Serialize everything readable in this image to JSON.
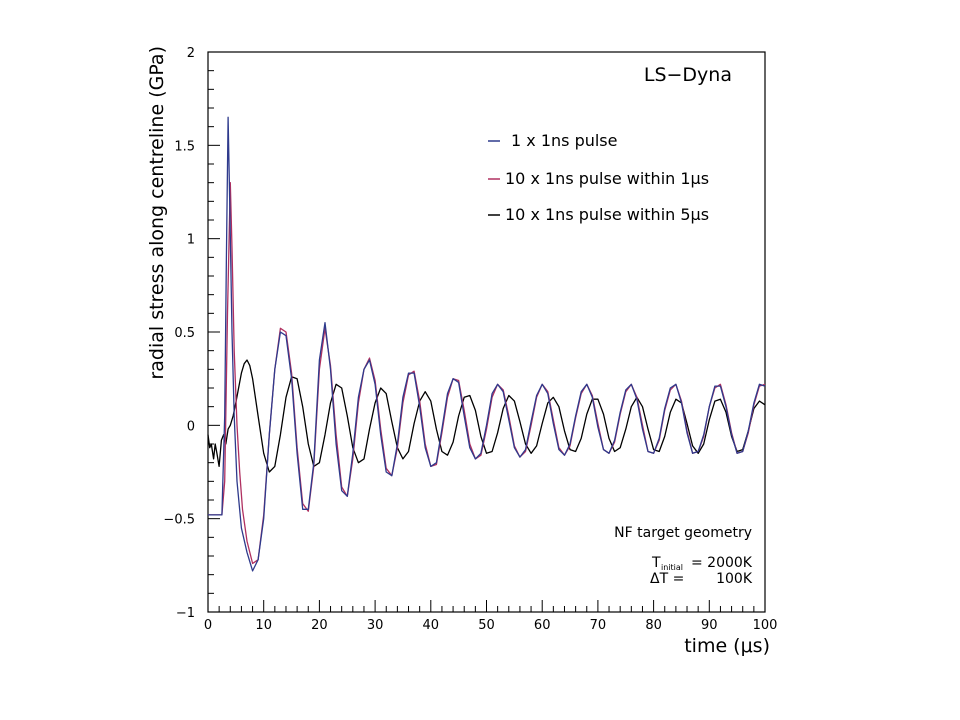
{
  "chart_data": {
    "type": "line",
    "title": "LS−Dyna",
    "xlabel": "time (μs)",
    "ylabel": "radial stress along centreline (GPa)",
    "xlim": [
      0,
      100
    ],
    "ylim": [
      -1,
      2
    ],
    "x_ticks": [
      "0",
      "10",
      "20",
      "30",
      "40",
      "50",
      "60",
      "70",
      "80",
      "90",
      "100"
    ],
    "y_ticks": [
      "−1",
      "−0.5",
      "0",
      "0.5",
      "1",
      "1.5",
      "2"
    ],
    "legend_position": "upper-right",
    "grid": false,
    "series": [
      {
        "name": "1 x 1ns pulse",
        "color": "#2e3a8c",
        "x": [
          0,
          0.5,
          1,
          1.5,
          2,
          2.5,
          3,
          3.3,
          3.6,
          3.9,
          4.3,
          4.7,
          5.2,
          6,
          7,
          8,
          9,
          10,
          11,
          12,
          13,
          14,
          15,
          16,
          17,
          18,
          19,
          20,
          21,
          22,
          23,
          24,
          25,
          26,
          27,
          28,
          29,
          30,
          31,
          32,
          33,
          34,
          35,
          36,
          37,
          38,
          39,
          40,
          41,
          42,
          43,
          44,
          45,
          46,
          47,
          48,
          49,
          50,
          51,
          52,
          53,
          54,
          55,
          56,
          57,
          58,
          59,
          60,
          61,
          62,
          63,
          64,
          65,
          66,
          67,
          68,
          69,
          70,
          71,
          72,
          73,
          74,
          75,
          76,
          77,
          78,
          79,
          80,
          81,
          82,
          83,
          84,
          85,
          86,
          87,
          88,
          89,
          90,
          91,
          92,
          93,
          94,
          95,
          96,
          97,
          98,
          99,
          100
        ],
        "y": [
          -0.48,
          -0.48,
          -0.48,
          -0.48,
          -0.48,
          -0.48,
          0.05,
          0.9,
          1.65,
          1.2,
          0.5,
          0.05,
          -0.3,
          -0.55,
          -0.68,
          -0.78,
          -0.72,
          -0.5,
          -0.05,
          0.3,
          0.5,
          0.48,
          0.25,
          -0.15,
          -0.45,
          -0.45,
          -0.2,
          0.35,
          0.55,
          0.3,
          -0.1,
          -0.35,
          -0.38,
          -0.15,
          0.15,
          0.3,
          0.35,
          0.22,
          -0.05,
          -0.25,
          -0.27,
          -0.1,
          0.15,
          0.28,
          0.28,
          0.1,
          -0.12,
          -0.22,
          -0.2,
          -0.02,
          0.17,
          0.25,
          0.23,
          0.05,
          -0.12,
          -0.18,
          -0.15,
          0.0,
          0.17,
          0.22,
          0.18,
          0.03,
          -0.12,
          -0.17,
          -0.13,
          0.02,
          0.16,
          0.22,
          0.17,
          0.01,
          -0.13,
          -0.16,
          -0.1,
          0.05,
          0.18,
          0.22,
          0.15,
          -0.01,
          -0.13,
          -0.15,
          -0.08,
          0.07,
          0.19,
          0.22,
          0.14,
          -0.02,
          -0.14,
          -0.15,
          -0.07,
          0.09,
          0.2,
          0.22,
          0.12,
          -0.04,
          -0.15,
          -0.14,
          -0.05,
          0.1,
          0.21,
          0.21,
          0.1,
          -0.05,
          -0.15,
          -0.14,
          -0.03,
          0.12,
          0.22,
          0.21
        ],
        "note": "peak ~1.67 GPa near 3.6 μs"
      },
      {
        "name": "10 x 1ns pulse within 1μs",
        "color": "#b03060",
        "x": [
          0,
          0.5,
          1,
          1.5,
          2,
          2.5,
          3,
          3.5,
          4,
          4.3,
          4.7,
          5.2,
          5.7,
          6.2,
          7,
          8,
          9,
          10,
          11,
          12,
          13,
          14,
          15,
          16,
          17,
          18,
          19,
          20,
          21,
          22,
          23,
          24,
          25,
          26,
          27,
          28,
          29,
          30,
          31,
          32,
          33,
          34,
          35,
          36,
          37,
          38,
          39,
          40,
          41,
          42,
          43,
          44,
          45,
          46,
          47,
          48,
          49,
          50,
          51,
          52,
          53,
          54,
          55,
          56,
          57,
          58,
          59,
          60,
          61,
          62,
          63,
          64,
          65,
          66,
          67,
          68,
          69,
          70,
          71,
          72,
          73,
          74,
          75,
          76,
          77,
          78,
          79,
          80,
          81,
          82,
          83,
          84,
          85,
          86,
          87,
          88,
          89,
          90,
          91,
          92,
          93,
          94,
          95,
          96,
          97,
          98,
          99,
          100
        ],
        "y": [
          -0.48,
          -0.48,
          -0.48,
          -0.48,
          -0.48,
          -0.48,
          -0.3,
          0.6,
          1.3,
          0.95,
          0.4,
          0.0,
          -0.25,
          -0.45,
          -0.62,
          -0.74,
          -0.72,
          -0.48,
          -0.05,
          0.3,
          0.52,
          0.5,
          0.28,
          -0.12,
          -0.42,
          -0.46,
          -0.22,
          0.3,
          0.52,
          0.32,
          -0.05,
          -0.33,
          -0.38,
          -0.18,
          0.12,
          0.3,
          0.36,
          0.24,
          -0.02,
          -0.23,
          -0.27,
          -0.12,
          0.12,
          0.27,
          0.29,
          0.13,
          -0.1,
          -0.22,
          -0.21,
          -0.04,
          0.15,
          0.25,
          0.24,
          0.08,
          -0.1,
          -0.18,
          -0.16,
          -0.02,
          0.15,
          0.22,
          0.19,
          0.05,
          -0.11,
          -0.17,
          -0.14,
          0.0,
          0.15,
          0.22,
          0.18,
          0.03,
          -0.12,
          -0.16,
          -0.11,
          0.04,
          0.17,
          0.22,
          0.16,
          0.01,
          -0.13,
          -0.15,
          -0.09,
          0.06,
          0.18,
          0.22,
          0.15,
          0.0,
          -0.14,
          -0.15,
          -0.08,
          0.08,
          0.19,
          0.22,
          0.13,
          -0.03,
          -0.15,
          -0.14,
          -0.06,
          0.1,
          0.2,
          0.22,
          0.11,
          -0.04,
          -0.15,
          -0.14,
          -0.04,
          0.11,
          0.21,
          0.22
        ]
      },
      {
        "name": "10 x 1ns pulse within 5μs",
        "color": "#000000",
        "x": [
          0,
          0.3,
          0.6,
          1,
          1.3,
          1.6,
          2,
          2.4,
          2.8,
          3.2,
          3.6,
          4,
          4.5,
          5,
          5.5,
          6,
          6.5,
          7,
          7.5,
          8,
          9,
          10,
          11,
          12,
          13,
          14,
          15,
          16,
          17,
          18,
          19,
          20,
          21,
          22,
          23,
          24,
          25,
          26,
          27,
          28,
          29,
          30,
          31,
          32,
          33,
          34,
          35,
          36,
          37,
          38,
          39,
          40,
          41,
          42,
          43,
          44,
          45,
          46,
          47,
          48,
          49,
          50,
          51,
          52,
          53,
          54,
          55,
          56,
          57,
          58,
          59,
          60,
          61,
          62,
          63,
          64,
          65,
          66,
          67,
          68,
          69,
          70,
          71,
          72,
          73,
          74,
          75,
          76,
          77,
          78,
          79,
          80,
          81,
          82,
          83,
          84,
          85,
          86,
          87,
          88,
          89,
          90,
          91,
          92,
          93,
          94,
          95,
          96,
          97,
          98,
          99,
          100
        ],
        "y": [
          -0.05,
          -0.12,
          -0.1,
          -0.18,
          -0.1,
          -0.15,
          -0.22,
          -0.08,
          -0.05,
          -0.1,
          -0.02,
          0.0,
          0.05,
          0.12,
          0.2,
          0.28,
          0.33,
          0.35,
          0.32,
          0.25,
          0.05,
          -0.15,
          -0.25,
          -0.22,
          -0.05,
          0.15,
          0.26,
          0.25,
          0.1,
          -0.1,
          -0.22,
          -0.2,
          -0.05,
          0.12,
          0.22,
          0.2,
          0.05,
          -0.12,
          -0.2,
          -0.18,
          -0.02,
          0.12,
          0.2,
          0.17,
          0.02,
          -0.12,
          -0.18,
          -0.14,
          0.01,
          0.13,
          0.18,
          0.13,
          -0.02,
          -0.14,
          -0.16,
          -0.09,
          0.05,
          0.15,
          0.16,
          0.08,
          -0.06,
          -0.15,
          -0.14,
          -0.04,
          0.09,
          0.16,
          0.13,
          0.02,
          -0.1,
          -0.15,
          -0.11,
          0.01,
          0.12,
          0.15,
          0.1,
          -0.03,
          -0.13,
          -0.14,
          -0.07,
          0.06,
          0.14,
          0.14,
          0.06,
          -0.07,
          -0.14,
          -0.12,
          -0.02,
          0.1,
          0.15,
          0.1,
          -0.02,
          -0.13,
          -0.14,
          -0.06,
          0.07,
          0.14,
          0.12,
          0.01,
          -0.11,
          -0.15,
          -0.1,
          0.03,
          0.13,
          0.14,
          0.07,
          -0.06,
          -0.14,
          -0.13,
          -0.03,
          0.09,
          0.13,
          0.11
        ]
      }
    ],
    "annotations": {
      "geometry": "NF target geometry",
      "t_initial_symbol": "T",
      "t_initial_sub": "initial",
      "t_initial_value": "= 2000K",
      "delta_t_label": "ΔT =",
      "delta_t_value": "100K"
    }
  }
}
